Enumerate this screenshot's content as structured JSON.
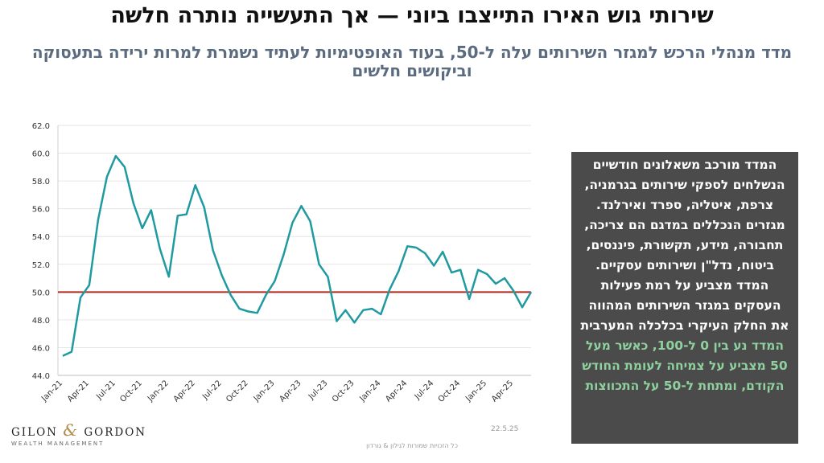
{
  "title": "שירותי גוש האירו התייצבו ביוני — אך התעשייה נותרה חלשה",
  "subtitle": "מדד מנהלי הרכש למגזר השירותים עלה ל-50, בעוד האופטימיות לעתיד נשמרת למרות ירידה בתעסוקה וביקושים חלשים",
  "sidebox": {
    "text": "המדד מורכב משאלונים חודשיים הנשלחים לספקי שירותים בגרמניה, צרפת, איטליה, ספרד ואירלנד. מגזרים הנכללים במדגם הם צריכה, תחבורה, מידע, תקשורת, פיננסים, ביטוח, נדל\"ן ושירותים עסקיים. המדד מצביע על רמת פעילות העסקים במגזר השירותים המהווה את החלק העיקרי בכלכלה המערבית",
    "text_green": "המדד נע בין 0 ל-100, כאשר מעל 50 מצביע על צמיחה לעומת החודש הקודם, ומתחת ל-50 על התכווצות",
    "bg_color": "#4b4b4b",
    "green_color": "#8fd19e"
  },
  "logo": {
    "brand_left": "GILON",
    "amp": "&",
    "brand_right": "GORDON",
    "sub": "WEALTH MANAGEMENT"
  },
  "date_text": "22.5.25",
  "footer": "כל הזכויות שמורות לגילון & גורדון",
  "chart_data": {
    "type": "line",
    "ylim": [
      44,
      62
    ],
    "yticks": [
      "44.0",
      "46.0",
      "48.0",
      "50.0",
      "52.0",
      "54.0",
      "56.0",
      "58.0",
      "60.0",
      "62.0"
    ],
    "x_tick_labels": [
      "Jan-21",
      "Apr-21",
      "Jul-21",
      "Oct-21",
      "Jan-22",
      "Apr-22",
      "Jul-22",
      "Oct-22",
      "Jan-23",
      "Apr-23",
      "Jul-23",
      "Oct-23",
      "Jan-24",
      "Apr-24",
      "Jul-24",
      "Oct-24",
      "Jan-25",
      "Apr-25"
    ],
    "x": [
      "Jan-21",
      "Feb-21",
      "Mar-21",
      "Apr-21",
      "May-21",
      "Jun-21",
      "Jul-21",
      "Aug-21",
      "Sep-21",
      "Oct-21",
      "Nov-21",
      "Dec-21",
      "Jan-22",
      "Feb-22",
      "Mar-22",
      "Apr-22",
      "May-22",
      "Jun-22",
      "Jul-22",
      "Aug-22",
      "Sep-22",
      "Oct-22",
      "Nov-22",
      "Dec-22",
      "Jan-23",
      "Feb-23",
      "Mar-23",
      "Apr-23",
      "May-23",
      "Jun-23",
      "Jul-23",
      "Aug-23",
      "Sep-23",
      "Oct-23",
      "Nov-23",
      "Dec-23",
      "Jan-24",
      "Feb-24",
      "Mar-24",
      "Apr-24",
      "May-24",
      "Jun-24",
      "Jul-24",
      "Aug-24",
      "Sep-24",
      "Oct-24",
      "Nov-24",
      "Dec-24",
      "Jan-25",
      "Feb-25",
      "Mar-25",
      "Apr-25",
      "May-25",
      "Jun-25"
    ],
    "values": [
      45.4,
      45.7,
      49.6,
      50.5,
      55.2,
      58.3,
      59.8,
      59.0,
      56.4,
      54.6,
      55.9,
      53.1,
      51.1,
      55.5,
      55.6,
      57.7,
      56.1,
      53.0,
      51.2,
      49.8,
      48.8,
      48.6,
      48.5,
      49.8,
      50.8,
      52.7,
      55.0,
      56.2,
      55.1,
      52.0,
      51.1,
      47.9,
      48.7,
      47.8,
      48.7,
      48.8,
      48.4,
      50.2,
      51.5,
      53.3,
      53.2,
      52.8,
      51.9,
      52.9,
      51.4,
      51.6,
      49.5,
      51.6,
      51.3,
      50.6,
      51.0,
      50.1,
      48.9,
      50.0
    ],
    "line_color": "#1f9aa0",
    "reference": {
      "y": 50,
      "color": "#b0281f"
    },
    "grid": true
  }
}
